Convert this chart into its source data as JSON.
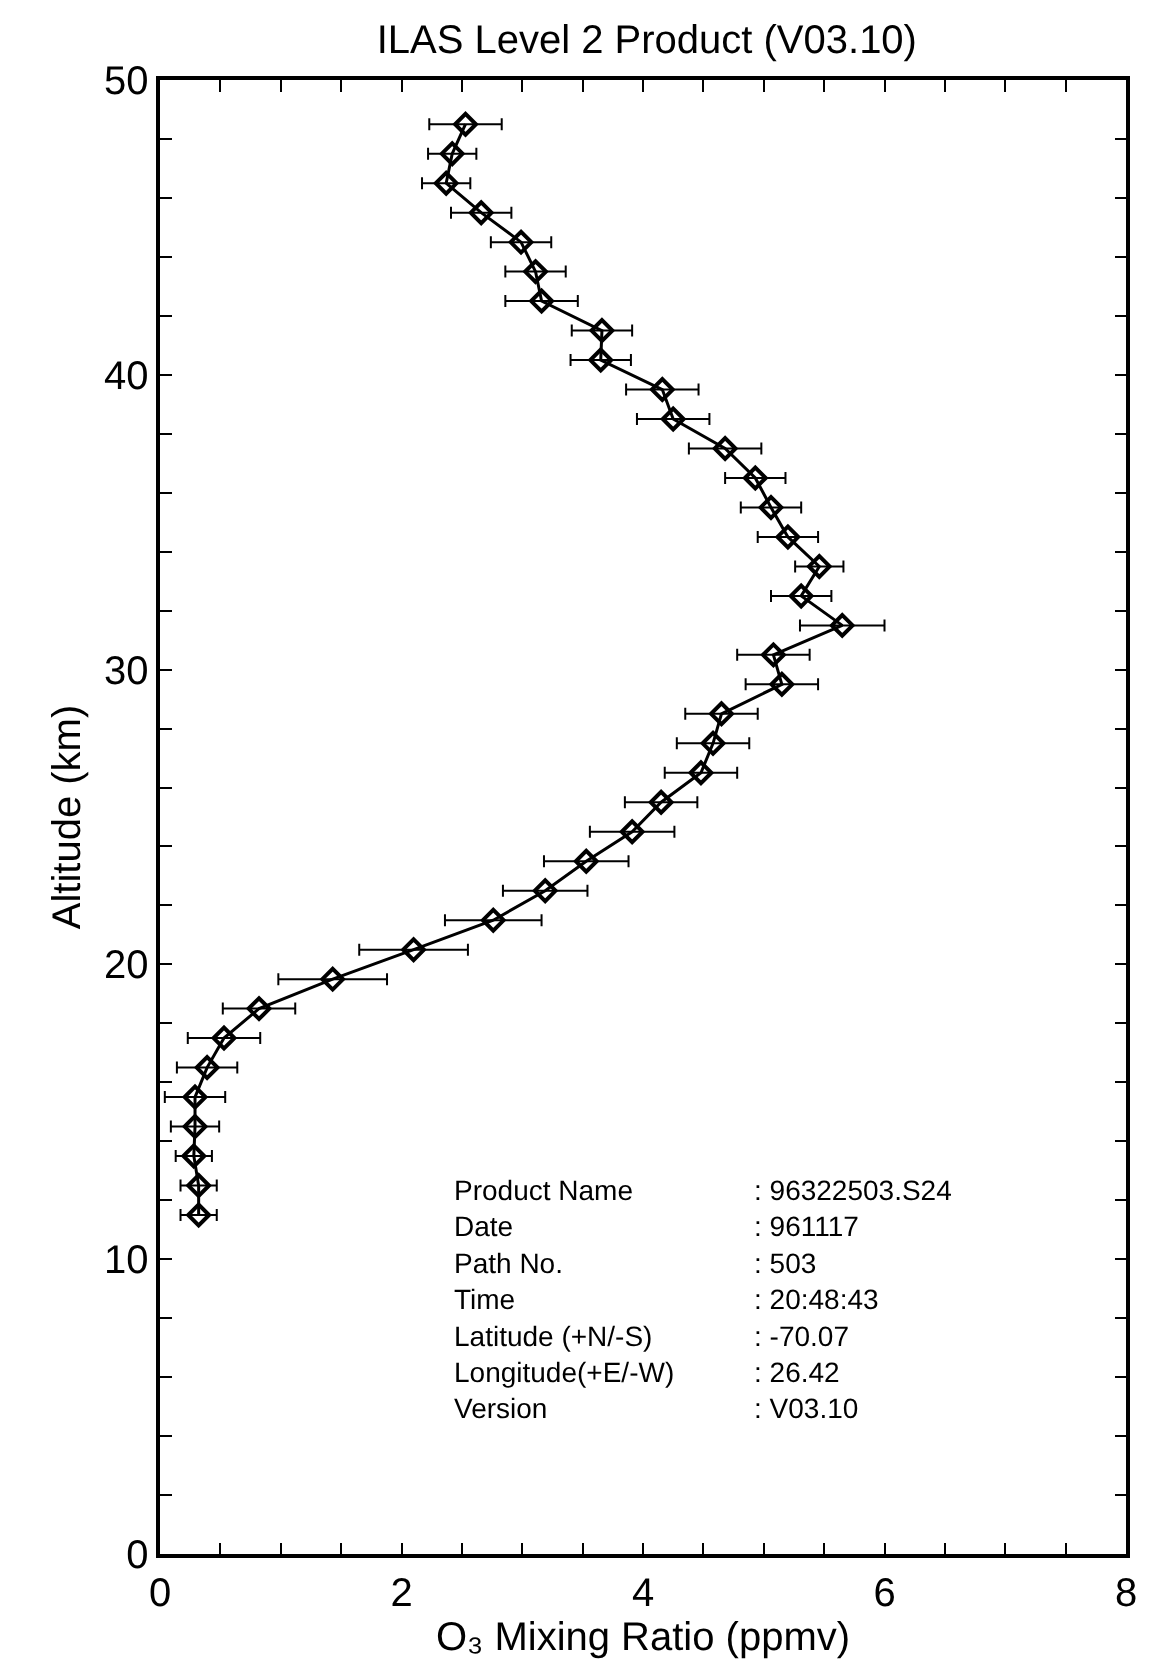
{
  "chart_data": {
    "type": "line",
    "title": "ILAS Level 2 Product (V03.10)",
    "xlabel": "O₃ Mixing Ratio (ppmv)",
    "ylabel": "Altitude (km)",
    "series": [
      {
        "color": "#000000",
        "x": [
          2.53,
          2.42,
          2.37,
          2.66,
          2.99,
          3.11,
          3.16,
          3.66,
          3.65,
          4.16,
          4.25,
          4.68,
          4.93,
          5.06,
          5.2,
          5.46,
          5.31,
          5.65,
          5.08,
          5.15,
          4.65,
          4.58,
          4.48,
          4.15,
          3.91,
          3.53,
          3.19,
          2.76,
          2.1,
          1.43,
          0.82,
          0.53,
          0.39,
          0.29,
          0.29,
          0.28,
          0.32,
          0.32
        ],
        "values": [
          48.5,
          47.5,
          46.5,
          45.5,
          44.5,
          43.5,
          42.5,
          41.5,
          40.5,
          39.5,
          38.5,
          37.5,
          36.5,
          35.5,
          34.5,
          33.5,
          32.5,
          31.5,
          30.5,
          29.5,
          28.5,
          27.5,
          26.5,
          25.5,
          24.5,
          23.5,
          22.5,
          21.5,
          20.5,
          19.5,
          18.5,
          17.5,
          16.5,
          15.5,
          14.5,
          13.5,
          12.5,
          11.5
        ],
        "xerrors": [
          0.3,
          0.2,
          0.2,
          0.25,
          0.25,
          0.25,
          0.3,
          0.25,
          0.25,
          0.3,
          0.3,
          0.3,
          0.25,
          0.25,
          0.25,
          0.2,
          0.25,
          0.35,
          0.3,
          0.3,
          0.3,
          0.3,
          0.3,
          0.3,
          0.35,
          0.35,
          0.35,
          0.4,
          0.45,
          0.45,
          0.3,
          0.3,
          0.25,
          0.25,
          0.2,
          0.15,
          0.15,
          0.15
        ]
      }
    ],
    "marker": "diamond",
    "line_style": "solid",
    "xlim": [
      0,
      8
    ],
    "ylim": [
      0,
      50
    ],
    "xticks": [
      0,
      {
        "value": 0.5,
        "label": null
      },
      {
        "value": 1,
        "label": null
      },
      {
        "value": 1.5,
        "label": null
      },
      2,
      {
        "value": 2.5,
        "label": null
      },
      {
        "value": 3,
        "label": null
      },
      {
        "value": 3.5,
        "label": null
      },
      4,
      {
        "value": 4.5,
        "label": null
      },
      {
        "value": 5,
        "label": null
      },
      {
        "value": 5.5,
        "label": null
      },
      6,
      {
        "value": 6.5,
        "label": null
      },
      {
        "value": 7,
        "label": null
      },
      {
        "value": 7.5,
        "label": null
      },
      8
    ],
    "yticks": [
      0,
      {
        "value": 2,
        "label": null
      },
      {
        "value": 4,
        "label": null
      },
      {
        "value": 6,
        "label": null
      },
      {
        "value": 8,
        "label": null
      },
      10,
      {
        "value": 12,
        "label": null
      },
      {
        "value": 14,
        "label": null
      },
      {
        "value": 16,
        "label": null
      },
      {
        "value": 18,
        "label": null
      },
      20,
      {
        "value": 22,
        "label": null
      },
      {
        "value": 24,
        "label": null
      },
      {
        "value": 26,
        "label": null
      },
      {
        "value": 28,
        "label": null
      },
      30,
      {
        "value": 32,
        "label": null
      },
      {
        "value": 34,
        "label": null
      },
      {
        "value": 36,
        "label": null
      },
      {
        "value": 38,
        "label": null
      },
      40,
      {
        "value": 42,
        "label": null
      },
      {
        "value": 44,
        "label": null
      },
      {
        "value": 46,
        "label": null
      },
      {
        "value": 48,
        "label": null
      },
      50
    ],
    "annotations": [
      "Product Name\nDate\nPath No.\nTime\nLatitude (+N/-S)\nLongitude(+E/-W)\nVersion",
      ": 96322503.S24\n: 961117\n: 503\n: 20:48:43\n: -70.07\n: 26.42\n: V03.10"
    ]
  }
}
